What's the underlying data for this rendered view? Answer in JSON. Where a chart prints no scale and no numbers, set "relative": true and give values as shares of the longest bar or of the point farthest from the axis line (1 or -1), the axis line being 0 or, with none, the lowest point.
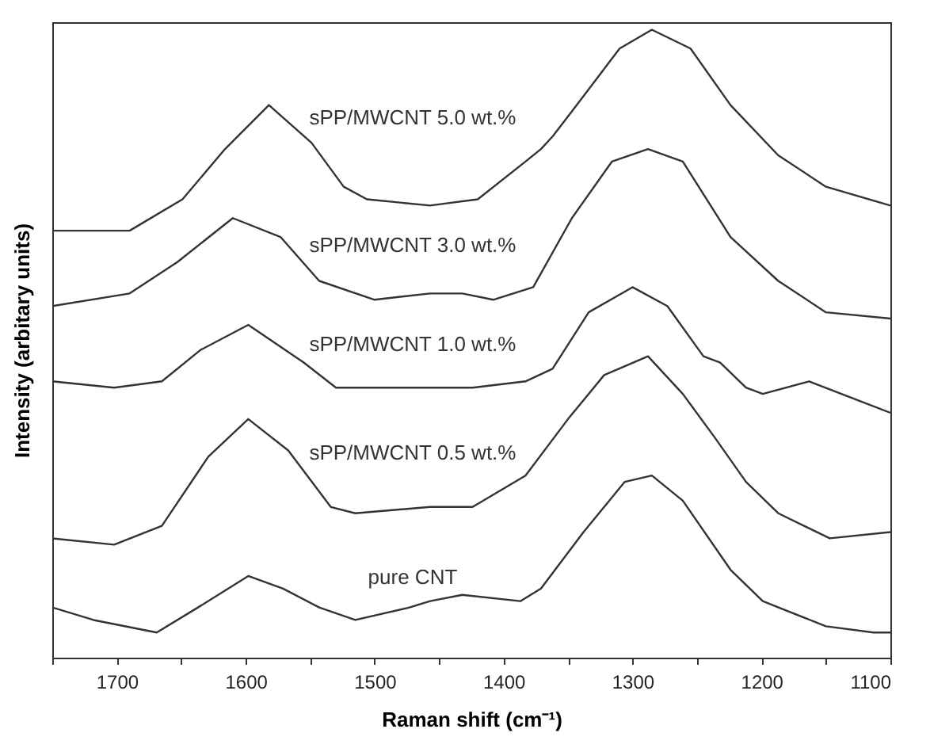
{
  "chart_data": {
    "type": "line",
    "relative": true,
    "xlabel": "Raman shift (cm⁻¹)",
    "ylabel": "Intensity (arbitary units)",
    "xlim": [
      1750,
      1100
    ],
    "xticks": [
      {
        "value": 1750,
        "label": null
      },
      1700,
      {
        "value": 1650,
        "label": null
      },
      1600,
      {
        "value": 1550,
        "label": null
      },
      1500,
      {
        "value": 1450,
        "label": null
      },
      1400,
      {
        "value": 1350,
        "label": null
      },
      1300,
      {
        "value": 1250,
        "label": null
      },
      1200,
      {
        "value": 1150,
        "label": null
      },
      1100
    ],
    "grid": false,
    "legend": false,
    "line_style": "solid",
    "marker": "none",
    "series": [
      {
        "name": "sPP/MWCNT 5.0 wt.%",
        "color": "#333333",
        "x": [
          1750,
          1690,
          1649,
          1616,
          1582,
          1549,
          1524,
          1506,
          1457,
          1420,
          1383,
          1371,
          1362,
          1347,
          1310,
          1285,
          1255,
          1224,
          1187,
          1150,
          1100
        ],
        "values": [
          0.68,
          0.68,
          0.73,
          0.81,
          0.88,
          0.82,
          0.75,
          0.73,
          0.72,
          0.73,
          0.79,
          0.81,
          0.83,
          0.87,
          0.97,
          1.0,
          0.97,
          0.88,
          0.8,
          0.75,
          0.72
        ]
      },
      {
        "name": "sPP/MWCNT 3.0 wt.%",
        "color": "#333333",
        "x": [
          1750,
          1690,
          1653,
          1610,
          1573,
          1543,
          1500,
          1457,
          1432,
          1408,
          1377,
          1347,
          1316,
          1288,
          1261,
          1224,
          1187,
          1150,
          1100
        ],
        "values": [
          0.56,
          0.58,
          0.63,
          0.7,
          0.67,
          0.6,
          0.57,
          0.58,
          0.58,
          0.57,
          0.59,
          0.7,
          0.79,
          0.81,
          0.79,
          0.67,
          0.6,
          0.55,
          0.54
        ]
      },
      {
        "name": "sPP/MWCNT 1.0 wt.%",
        "color": "#333333",
        "x": [
          1750,
          1702,
          1665,
          1635,
          1598,
          1555,
          1530,
          1473,
          1424,
          1383,
          1362,
          1334,
          1300,
          1273,
          1245,
          1232,
          1212,
          1199,
          1163,
          1138,
          1100
        ],
        "values": [
          0.44,
          0.43,
          0.44,
          0.49,
          0.53,
          0.47,
          0.43,
          0.43,
          0.43,
          0.44,
          0.46,
          0.55,
          0.59,
          0.56,
          0.48,
          0.47,
          0.43,
          0.42,
          0.44,
          0.42,
          0.39
        ]
      },
      {
        "name": "sPP/MWCNT 0.5 wt.%",
        "color": "#333333",
        "x": [
          1750,
          1702,
          1665,
          1629,
          1598,
          1567,
          1534,
          1515,
          1457,
          1424,
          1383,
          1350,
          1322,
          1288,
          1261,
          1236,
          1212,
          1187,
          1147,
          1100
        ],
        "values": [
          0.19,
          0.18,
          0.21,
          0.32,
          0.38,
          0.33,
          0.24,
          0.23,
          0.24,
          0.24,
          0.29,
          0.38,
          0.45,
          0.48,
          0.42,
          0.35,
          0.28,
          0.23,
          0.19,
          0.2
        ]
      },
      {
        "name": "pure CNT",
        "color": "#333333",
        "x": [
          1750,
          1718,
          1669,
          1637,
          1598,
          1571,
          1543,
          1515,
          1473,
          1457,
          1432,
          1387,
          1371,
          1338,
          1306,
          1285,
          1261,
          1224,
          1199,
          1150,
          1113,
          1100
        ],
        "values": [
          0.08,
          0.06,
          0.04,
          0.08,
          0.13,
          0.11,
          0.08,
          0.06,
          0.08,
          0.09,
          0.1,
          0.09,
          0.11,
          0.2,
          0.28,
          0.29,
          0.25,
          0.14,
          0.09,
          0.05,
          0.04,
          0.04
        ]
      }
    ]
  }
}
